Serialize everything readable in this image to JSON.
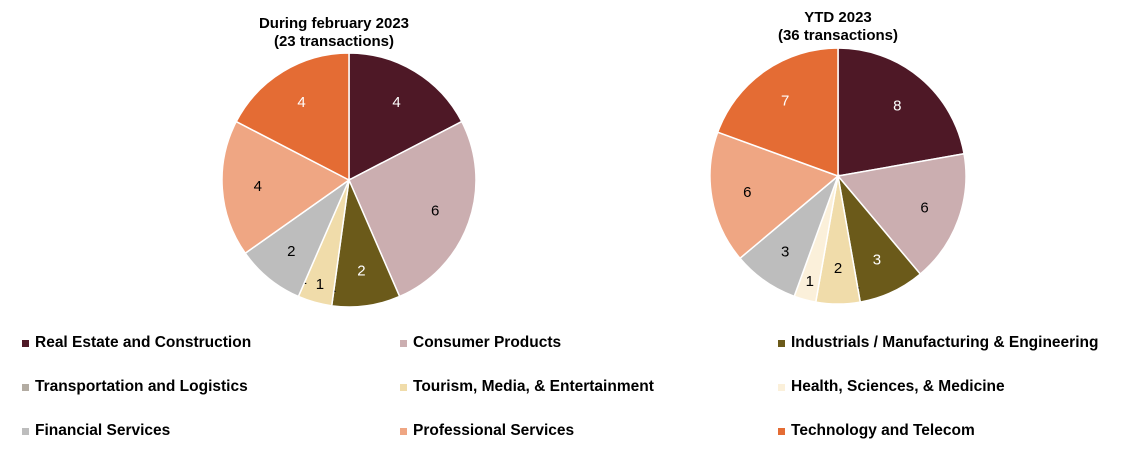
{
  "chart_data": [
    {
      "type": "pie",
      "title": "During february 2023",
      "subtitle": "(23 transactions)",
      "slices": [
        {
          "category": "Real Estate and Construction",
          "value": 4,
          "label": "4"
        },
        {
          "category": "Consumer Products",
          "value": 6,
          "label": "6"
        },
        {
          "category": "Industrials / Manufacturing & Engineering",
          "value": 2,
          "label": "2"
        },
        {
          "category": "Transportation and Logistics",
          "value": 0,
          "label": "-"
        },
        {
          "category": "Tourism, Media, & Entertainment",
          "value": 1,
          "label": "1"
        },
        {
          "category": "Health, Sciences, & Medicine",
          "value": 0,
          "label": "-"
        },
        {
          "category": "Financial Services",
          "value": 2,
          "label": "2"
        },
        {
          "category": "Professional Services",
          "value": 4,
          "label": "4"
        },
        {
          "category": "Technology and Telecom",
          "value": 4,
          "label": "4"
        }
      ]
    },
    {
      "type": "pie",
      "title": "YTD 2023",
      "subtitle": "(36 transactions)",
      "slices": [
        {
          "category": "Real Estate and Construction",
          "value": 8,
          "label": "8"
        },
        {
          "category": "Consumer Products",
          "value": 6,
          "label": "6"
        },
        {
          "category": "Industrials / Manufacturing & Engineering",
          "value": 3,
          "label": "3"
        },
        {
          "category": "Transportation and Logistics",
          "value": 0,
          "label": "-"
        },
        {
          "category": "Tourism, Media, & Entertainment",
          "value": 2,
          "label": "2"
        },
        {
          "category": "Health, Sciences, & Medicine",
          "value": 1,
          "label": "1"
        },
        {
          "category": "Financial Services",
          "value": 3,
          "label": "3"
        },
        {
          "category": "Professional Services",
          "value": 6,
          "label": "6"
        },
        {
          "category": "Technology and Telecom",
          "value": 7,
          "label": "7"
        }
      ]
    }
  ],
  "legend": [
    {
      "label": "Real Estate and Construction",
      "color": "#4E1826"
    },
    {
      "label": "Consumer Products",
      "color": "#CBAEB0"
    },
    {
      "label": "Industrials / Manufacturing & Engineering",
      "color": "#6B5A1A"
    },
    {
      "label": "Transportation and Logistics",
      "color": "#B3ACA2"
    },
    {
      "label": "Tourism, Media, & Entertainment",
      "color": "#F0DCAA"
    },
    {
      "label": "Health, Sciences, & Medicine",
      "color": "#FBF0DA"
    },
    {
      "label": "Financial Services",
      "color": "#BDBDBD"
    },
    {
      "label": "Professional Services",
      "color": "#EFA683"
    },
    {
      "label": "Technology and Telecom",
      "color": "#E46C34"
    }
  ]
}
